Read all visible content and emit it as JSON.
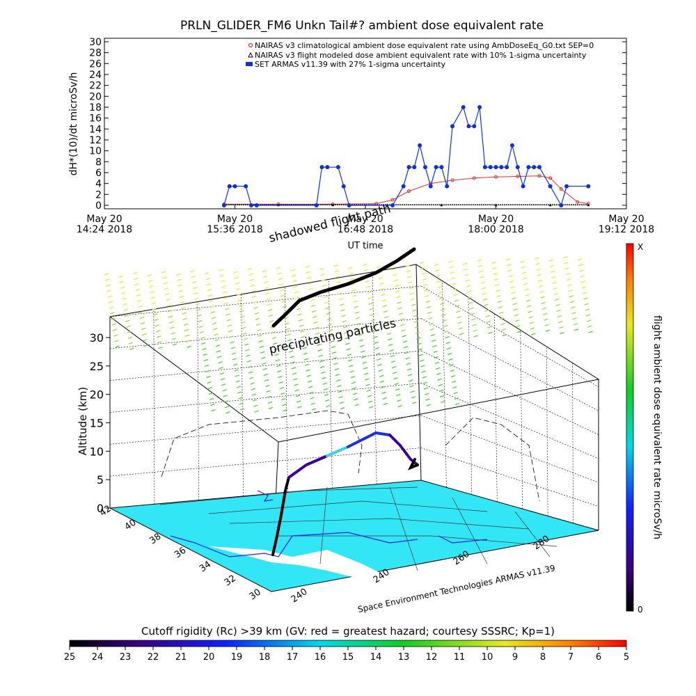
{
  "chart_data": [
    {
      "type": "line",
      "title": "PRLN_GLIDER_FM6 Unkn Tail#? ambient dose equivalent rate",
      "xlabel": "UT time",
      "ylabel": "dH*(10)/dt microSv/h",
      "ylim": [
        0,
        30
      ],
      "y_ticks": [
        0,
        2,
        4,
        6,
        8,
        10,
        12,
        14,
        16,
        18,
        20,
        22,
        24,
        26,
        28,
        30
      ],
      "x_ticks": [
        {
          "l1": "May 20",
          "l2": "14:24 2018"
        },
        {
          "l1": "May 20",
          "l2": "15:36 2018"
        },
        {
          "l1": "May 20",
          "l2": "16:48 2018"
        },
        {
          "l1": "May 20",
          "l2": "18:00 2018"
        },
        {
          "l1": "May 20",
          "l2": "19:12 2018"
        }
      ],
      "xlim_hours": [
        14.4,
        19.2
      ],
      "legend": [
        "NAIRAS v3 climatological ambient dose equivalent rate using AmbDoseEq_G0.txt SEP=0",
        "NAIRAS v3 flight modeled dose ambient equivalent rate with 10% 1-sigma uncertainty",
        "SET ARMAS v11.39 with 27% 1-sigma uncertainty"
      ],
      "legend_position": "top-right",
      "series": [
        {
          "name": "NAIRAS v3 climatological ambient dose equivalent rate using AmbDoseEq_G0.txt SEP=0",
          "color": "#e03030",
          "x": [
            15.5,
            16.0,
            16.5,
            16.9,
            17.05,
            17.2,
            17.4,
            17.6,
            17.8,
            18.0,
            18.2,
            18.4,
            18.5,
            18.6,
            18.75,
            18.85
          ],
          "values": [
            0.2,
            0.2,
            0.2,
            0.3,
            1.0,
            2.6,
            4.0,
            4.6,
            5.0,
            5.2,
            5.3,
            5.4,
            5.0,
            3.0,
            0.6,
            0.3
          ]
        },
        {
          "name": "NAIRAS v3 flight modeled dose ambient equivalent rate with 10% 1-sigma uncertainty",
          "color": "#000000",
          "x": [
            15.5,
            16.0,
            16.5,
            17.0,
            17.5,
            18.0,
            18.5,
            18.85
          ],
          "values": [
            0.1,
            0.1,
            0.1,
            0.1,
            0.1,
            0.1,
            0.1,
            0.1
          ]
        },
        {
          "name": "SET ARMAS v11.39 with 27% 1-sigma uncertainty",
          "color": "#1030e0",
          "x": [
            15.5,
            15.55,
            15.6,
            15.7,
            15.75,
            15.8,
            16.35,
            16.4,
            16.45,
            16.55,
            16.6,
            16.65,
            17.05,
            17.15,
            17.2,
            17.25,
            17.3,
            17.35,
            17.4,
            17.45,
            17.5,
            17.55,
            17.6,
            17.7,
            17.75,
            17.8,
            17.85,
            17.9,
            17.95,
            18.0,
            18.05,
            18.1,
            18.15,
            18.2,
            18.25,
            18.3,
            18.35,
            18.4,
            18.5,
            18.6,
            18.65,
            18.85
          ],
          "values": [
            0,
            3.5,
            3.5,
            3.5,
            0,
            0,
            0,
            7,
            7,
            7,
            3.5,
            0,
            0,
            3.5,
            7,
            7,
            11,
            7,
            3.5,
            7,
            7,
            3.5,
            14.5,
            18,
            14.5,
            14.5,
            18,
            7,
            7,
            7,
            7,
            7,
            11,
            7,
            3.5,
            7,
            7,
            7,
            3.5,
            0,
            3.5,
            3.5
          ]
        }
      ]
    },
    {
      "type": "scatter",
      "title": "",
      "zlabel": "Altitude (km)",
      "zlim": [
        0,
        30
      ],
      "z_ticks": [
        0,
        5,
        10,
        15,
        20,
        25,
        30
      ],
      "lat_ticks": [
        "42",
        "40",
        "38",
        "36",
        "34",
        "32",
        "30"
      ],
      "lon_ticks": [
        "240",
        "240",
        "260",
        "280"
      ],
      "annotations": [
        "shadowed flight path",
        "precipitating particles",
        "Space Environment Technologies ARMAS v11.39"
      ],
      "colorbar": {
        "label": "flight ambient dose equivalent rate microSv/h",
        "min_label": "0",
        "max_label": "X"
      }
    },
    {
      "type": "heatmap",
      "title": "Cutoff rigidity (Rc) >39 km (GV: red = greatest hazard; courtesy SSSRC; Kp=1)",
      "tick_labels": [
        "25",
        "24",
        "23",
        "22",
        "21",
        "20",
        "19",
        "18",
        "17",
        "16",
        "15",
        "14",
        "13",
        "12",
        "11",
        "10",
        "9",
        "8",
        "7",
        "6",
        "5"
      ]
    }
  ],
  "colors": {
    "nairas_clim": "#e03030",
    "armas": "#1030e0",
    "map_fill": "#33e6f5",
    "particles_yellow": "#e6e64a",
    "particles_green": "#56cc3a"
  }
}
